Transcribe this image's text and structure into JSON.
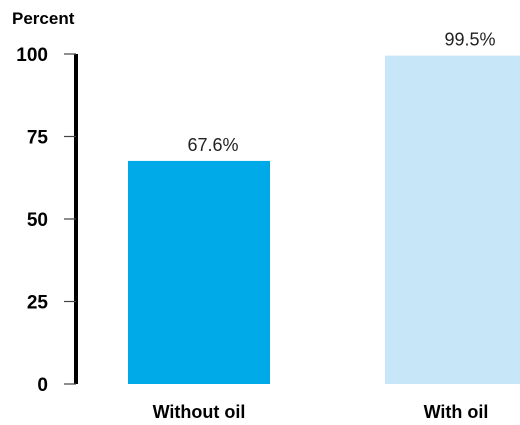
{
  "chart_data": {
    "type": "bar",
    "ylabel": "Percent",
    "ylim": [
      0,
      100
    ],
    "yticks": [
      0,
      25,
      50,
      75,
      100
    ],
    "yticks_labels": [
      "0",
      "25",
      "50",
      "75",
      "100"
    ],
    "categories": [
      "Without oil",
      "With oil"
    ],
    "values": [
      67.6,
      99.5
    ],
    "data_labels": [
      "67.6%",
      "99.5%"
    ],
    "colors": [
      "#00a9e8",
      "#c7e6f7"
    ],
    "grid": false,
    "legend": "none"
  }
}
